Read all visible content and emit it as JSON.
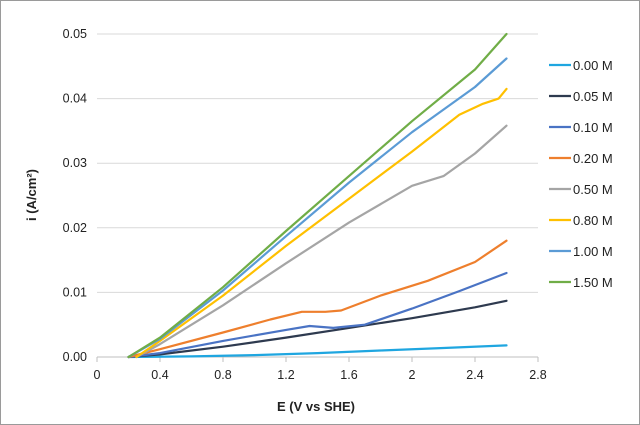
{
  "chart_data": {
    "type": "line",
    "title": "",
    "xlabel": "E (V vs SHE)",
    "ylabel": "i (A/cm²)",
    "xlim": [
      0,
      2.8
    ],
    "ylim": [
      0,
      0.05
    ],
    "x_ticks": [
      "0",
      "0.4",
      "0.8",
      "1.2",
      "1.6",
      "2",
      "2.4",
      "2.8"
    ],
    "y_ticks": [
      "0.00",
      "0.01",
      "0.02",
      "0.03",
      "0.04",
      "0.05"
    ],
    "grid": "horizontal",
    "legend_position": "right",
    "series": [
      {
        "name": "0.00 M",
        "color": "#1fa6e0",
        "points": [
          [
            0.2,
            0
          ],
          [
            0.6,
            0.0001
          ],
          [
            1.0,
            0.0003
          ],
          [
            1.4,
            0.0006
          ],
          [
            1.8,
            0.001
          ],
          [
            2.2,
            0.0014
          ],
          [
            2.6,
            0.0018
          ]
        ]
      },
      {
        "name": "0.05 M",
        "color": "#2e3a4f",
        "points": [
          [
            0.2,
            0
          ],
          [
            0.4,
            0.0004
          ],
          [
            0.8,
            0.0016
          ],
          [
            1.2,
            0.003
          ],
          [
            1.6,
            0.0045
          ],
          [
            2.0,
            0.006
          ],
          [
            2.4,
            0.0077
          ],
          [
            2.6,
            0.0087
          ]
        ]
      },
      {
        "name": "0.10 M",
        "color": "#4a73c4",
        "points": [
          [
            0.2,
            0
          ],
          [
            0.4,
            0.0006
          ],
          [
            0.8,
            0.0025
          ],
          [
            1.2,
            0.0042
          ],
          [
            1.35,
            0.0048
          ],
          [
            1.5,
            0.0045
          ],
          [
            1.7,
            0.005
          ],
          [
            2.0,
            0.0075
          ],
          [
            2.3,
            0.0102
          ],
          [
            2.6,
            0.013
          ]
        ]
      },
      {
        "name": "0.20 M",
        "color": "#ee7f2d",
        "points": [
          [
            0.2,
            0
          ],
          [
            0.4,
            0.0012
          ],
          [
            0.8,
            0.0038
          ],
          [
            1.1,
            0.0058
          ],
          [
            1.3,
            0.007
          ],
          [
            1.45,
            0.007
          ],
          [
            1.55,
            0.0072
          ],
          [
            1.8,
            0.0095
          ],
          [
            2.1,
            0.0118
          ],
          [
            2.4,
            0.0147
          ],
          [
            2.6,
            0.018
          ]
        ]
      },
      {
        "name": "0.50 M",
        "color": "#a5a5a5",
        "points": [
          [
            0.25,
            0
          ],
          [
            0.4,
            0.002
          ],
          [
            0.8,
            0.008
          ],
          [
            1.2,
            0.0145
          ],
          [
            1.6,
            0.0208
          ],
          [
            2.0,
            0.0265
          ],
          [
            2.2,
            0.028
          ],
          [
            2.4,
            0.0315
          ],
          [
            2.6,
            0.0358
          ]
        ]
      },
      {
        "name": "0.80 M",
        "color": "#ffc000",
        "points": [
          [
            0.25,
            0
          ],
          [
            0.4,
            0.0025
          ],
          [
            0.8,
            0.0095
          ],
          [
            1.2,
            0.0172
          ],
          [
            1.6,
            0.0245
          ],
          [
            2.0,
            0.0318
          ],
          [
            2.3,
            0.0375
          ],
          [
            2.45,
            0.0392
          ],
          [
            2.55,
            0.04
          ],
          [
            2.6,
            0.0415
          ]
        ]
      },
      {
        "name": "1.00 M",
        "color": "#5b9bd5",
        "points": [
          [
            0.2,
            0
          ],
          [
            0.4,
            0.0028
          ],
          [
            0.8,
            0.0103
          ],
          [
            1.2,
            0.0187
          ],
          [
            1.6,
            0.027
          ],
          [
            2.0,
            0.0348
          ],
          [
            2.4,
            0.0418
          ],
          [
            2.6,
            0.0462
          ]
        ]
      },
      {
        "name": "1.50 M",
        "color": "#70ad47",
        "points": [
          [
            0.2,
            0
          ],
          [
            0.4,
            0.003
          ],
          [
            0.8,
            0.0108
          ],
          [
            1.2,
            0.0195
          ],
          [
            1.6,
            0.028
          ],
          [
            2.0,
            0.0365
          ],
          [
            2.4,
            0.0445
          ],
          [
            2.6,
            0.05
          ]
        ]
      }
    ]
  }
}
